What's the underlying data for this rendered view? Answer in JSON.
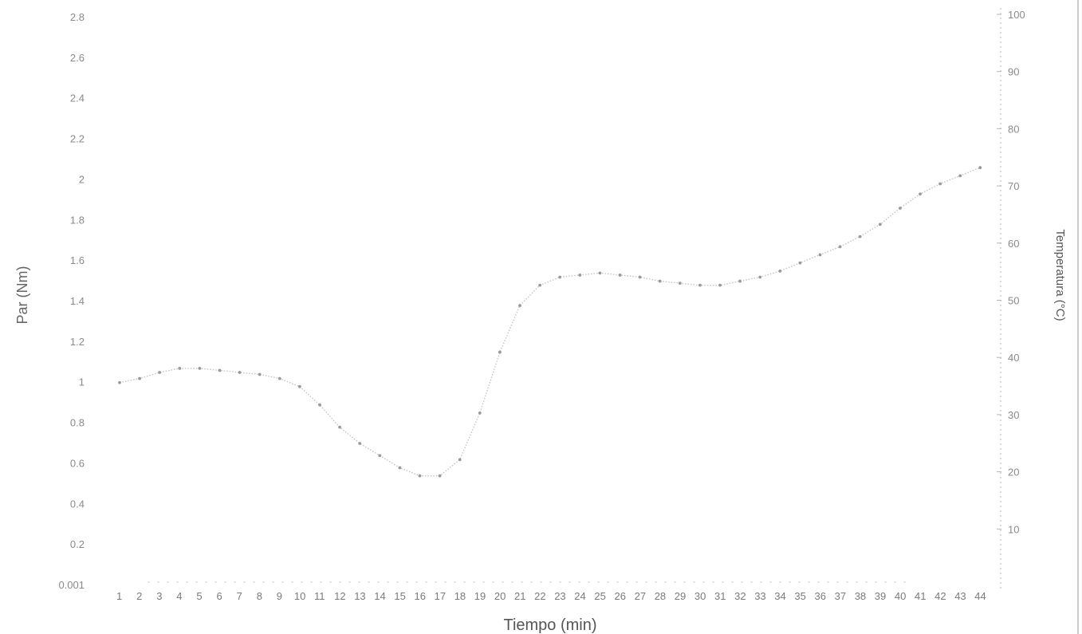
{
  "chart_data": {
    "type": "scatter",
    "title": "",
    "xlabel": "Tiempo (min)",
    "ylabel": "Par (Nm)",
    "y2label": "Temperatura (°C)",
    "x_categories": [
      "1",
      "2",
      "3",
      "4",
      "5",
      "6",
      "7",
      "8",
      "9",
      "10",
      "11",
      "12",
      "13",
      "14",
      "15",
      "16",
      "17",
      "18",
      "19",
      "20",
      "21",
      "22",
      "23",
      "24",
      "25",
      "26",
      "27",
      "28",
      "29",
      "30",
      "31",
      "32",
      "33",
      "34",
      "35",
      "36",
      "37",
      "38",
      "39",
      "40",
      "41",
      "42",
      "43",
      "44"
    ],
    "y_ticks": [
      "0.001",
      "0.2",
      "0.4",
      "0.6",
      "0.8",
      "1",
      "1.2",
      "1.4",
      "1.6",
      "1.8",
      "2",
      "2.2",
      "2.4",
      "2.6",
      "2.8"
    ],
    "y2_ticks": [
      "10",
      "20",
      "30",
      "40",
      "50",
      "60",
      "70",
      "80",
      "90",
      "100"
    ],
    "ylim": [
      0,
      2.8
    ],
    "y2lim": [
      0,
      100
    ],
    "grid": false,
    "color": "#999999",
    "series": [
      {
        "axis": "left",
        "x": [
          1,
          2,
          3,
          4,
          5,
          6,
          7,
          8,
          9,
          10,
          11,
          12,
          13,
          14,
          15,
          16,
          17,
          18,
          19,
          20,
          21,
          22,
          23,
          24,
          25,
          26,
          27,
          28,
          29,
          30,
          31,
          32,
          33,
          34,
          35,
          36,
          37,
          38,
          39,
          40,
          41,
          42,
          43,
          44
        ],
        "values": [
          1.0,
          1.02,
          1.05,
          1.07,
          1.07,
          1.06,
          1.05,
          1.04,
          1.02,
          0.98,
          0.89,
          0.78,
          0.7,
          0.64,
          0.58,
          0.54,
          0.54,
          0.62,
          0.85,
          1.15,
          1.38,
          1.48,
          1.52,
          1.53,
          1.54,
          1.53,
          1.52,
          1.5,
          1.49,
          1.48,
          1.48,
          1.5,
          1.52,
          1.55,
          1.59,
          1.63,
          1.67,
          1.72,
          1.78,
          1.86,
          1.93,
          1.98,
          2.02,
          2.06
        ]
      }
    ]
  }
}
